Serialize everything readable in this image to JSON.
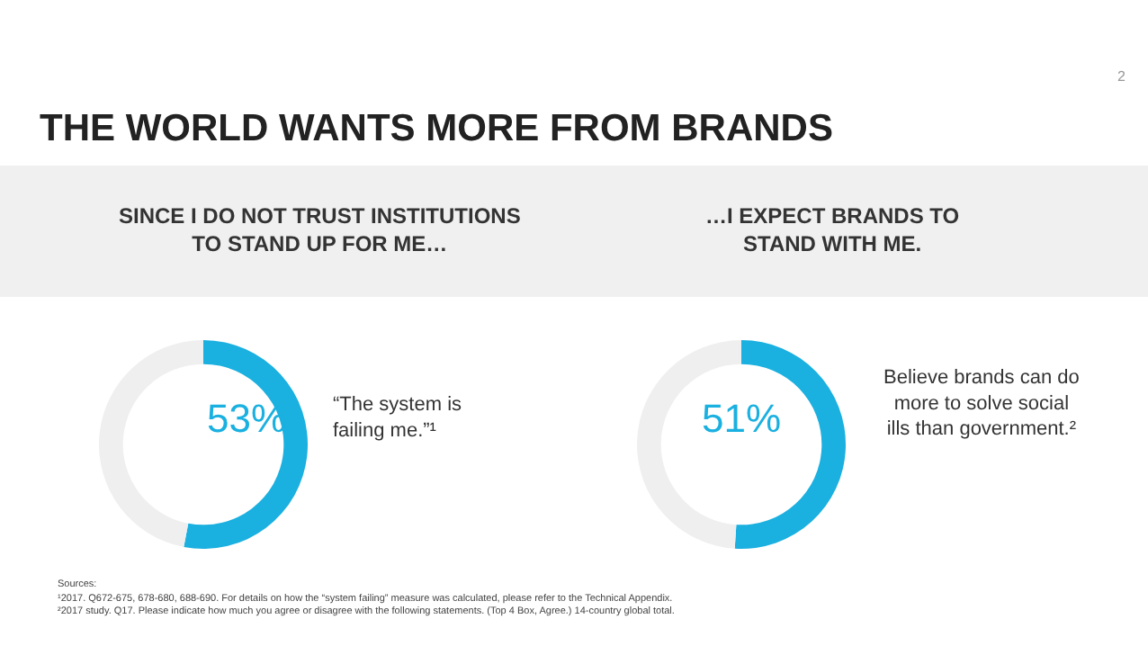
{
  "chart_data": [
    {
      "type": "donut",
      "title": "THE WORLD WANTS MORE FROM BRANDS",
      "subtitle": "SINCE I DO NOT TRUST INSTITUTIONS TO STAND UP FOR ME…",
      "categories": [
        null,
        null
      ],
      "values": [
        53,
        47
      ],
      "colors": [
        "#1ab0e0",
        "#efefef"
      ],
      "value_labels": [
        "53%",
        null
      ],
      "annotations": [
        "“The system is failing me.”¹",
        "Sources:",
        "¹2017. Q672-675, 678-680, 688-690. For details on how the “system failing” measure was calculated, please refer to the Technical Appendix.",
        "²2017 study. Q17. Please indicate how much you agree or disagree with the following statements. (Top 4 Box, Agree.) 14-country global total.",
        "2"
      ]
    },
    {
      "type": "donut",
      "subtitle": "…I EXPECT BRANDS TO STAND WITH ME.",
      "categories": [
        null,
        null
      ],
      "values": [
        51,
        49
      ],
      "colors": [
        "#1ab0e0",
        "#efefef"
      ],
      "value_labels": [
        "51%",
        null
      ],
      "annotations": [
        "Believe brands can do more to solve social ills than government.²"
      ]
    }
  ]
}
